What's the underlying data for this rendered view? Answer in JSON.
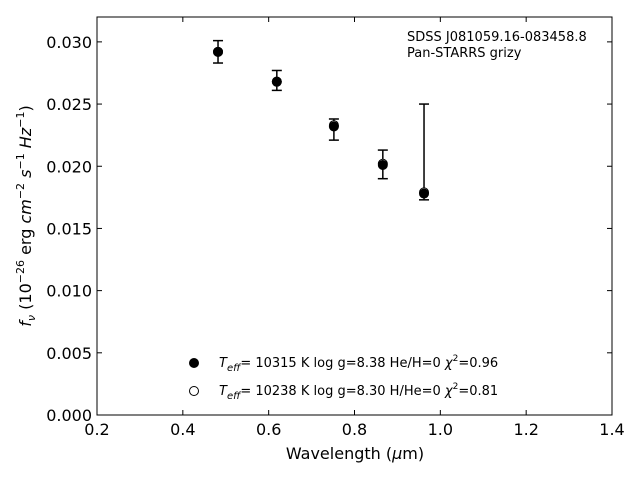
{
  "chart_data": {
    "type": "scatter",
    "xlabel_main": "Wavelength (",
    "xlabel_mu": "μ",
    "xlabel_end": "m)",
    "xlim": [
      0.2,
      1.4
    ],
    "ylim": [
      0.0,
      0.032
    ],
    "xticks": [
      "0.2",
      "0.4",
      "0.6",
      "0.8",
      "1.0",
      "1.2",
      "1.4"
    ],
    "yticks": [
      "0.000",
      "0.005",
      "0.010",
      "0.015",
      "0.020",
      "0.025",
      "0.030"
    ],
    "annotation": [
      "SDSS J081059.16-083458.8",
      "Pan-STARRS grizy"
    ],
    "observed": {
      "x": [
        0.482,
        0.619,
        0.752,
        0.866,
        0.962
      ],
      "y": [
        0.0292,
        0.0269,
        0.023,
        0.0201,
        0.0178
      ],
      "err_low": [
        0.0009,
        0.0008,
        0.0009,
        0.0011,
        0.0005
      ],
      "err_high": [
        0.0009,
        0.0008,
        0.0008,
        0.0012,
        0.0072
      ]
    },
    "series": [
      {
        "marker": "filled",
        "y": [
          0.0292,
          0.0268,
          0.0232,
          0.0201,
          0.0178
        ],
        "label_pre": "T",
        "label_sub": "eff",
        "label_mid": "= 10315 K  log g=8.38  He/H=0  ",
        "label_chi": "χ",
        "label_sup": "2",
        "label_end": "=0.96"
      },
      {
        "marker": "open",
        "y": [
          0.0292,
          0.0268,
          0.0233,
          0.0202,
          0.0179
        ],
        "label_pre": "T",
        "label_sub": "eff",
        "label_mid": "= 10238 K  log g=8.30  H/He=0  ",
        "label_chi": "χ",
        "label_sup": "2",
        "label_end": "=0.81"
      }
    ],
    "legend_position": "lower-center"
  }
}
